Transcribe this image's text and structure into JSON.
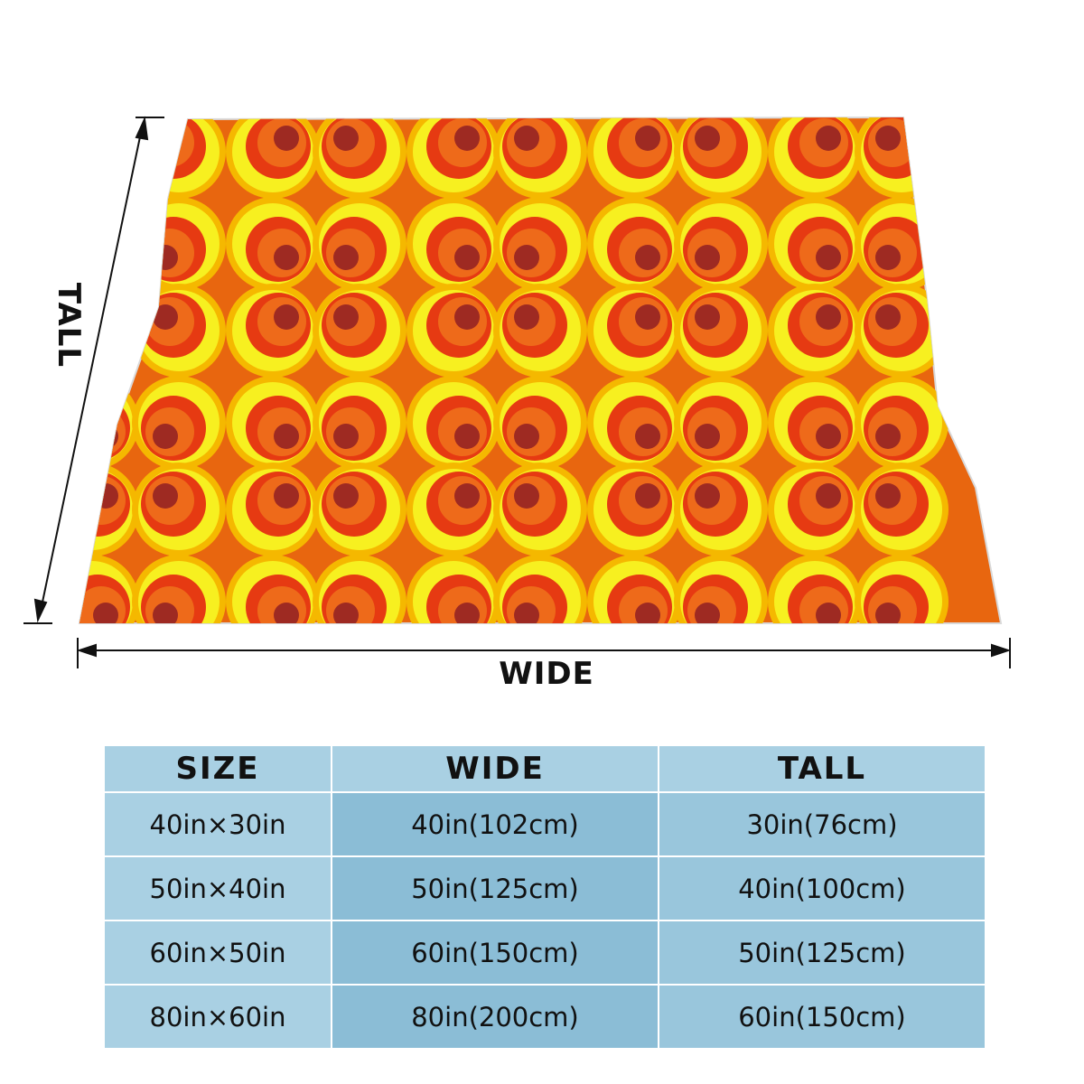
{
  "figure": {
    "wide_label": "WIDE",
    "tall_label": "TALL",
    "pattern_colors": {
      "background": "#e8660f",
      "outer_ring": "#f5b800",
      "yellow_ring": "#f7f020",
      "red_ring": "#e63a12",
      "inner_orange": "#ee6a1a",
      "dot": "#9e2a22"
    }
  },
  "size_table": {
    "headers": [
      "SIZE",
      "WIDE",
      "TALL"
    ],
    "rows": [
      [
        "40in×30in",
        "40in(102cm)",
        "30in(76cm)"
      ],
      [
        "50in×40in",
        "50in(125cm)",
        "40in(100cm)"
      ],
      [
        "60in×50in",
        "60in(150cm)",
        "50in(125cm)"
      ],
      [
        "80in×60in",
        "80in(200cm)",
        "60in(150cm)"
      ]
    ],
    "colors": {
      "header": "#a9d0e3",
      "size_col": "#a9d0e3",
      "wide_col": "#8bbdd6",
      "tall_col": "#99c6dc"
    }
  }
}
